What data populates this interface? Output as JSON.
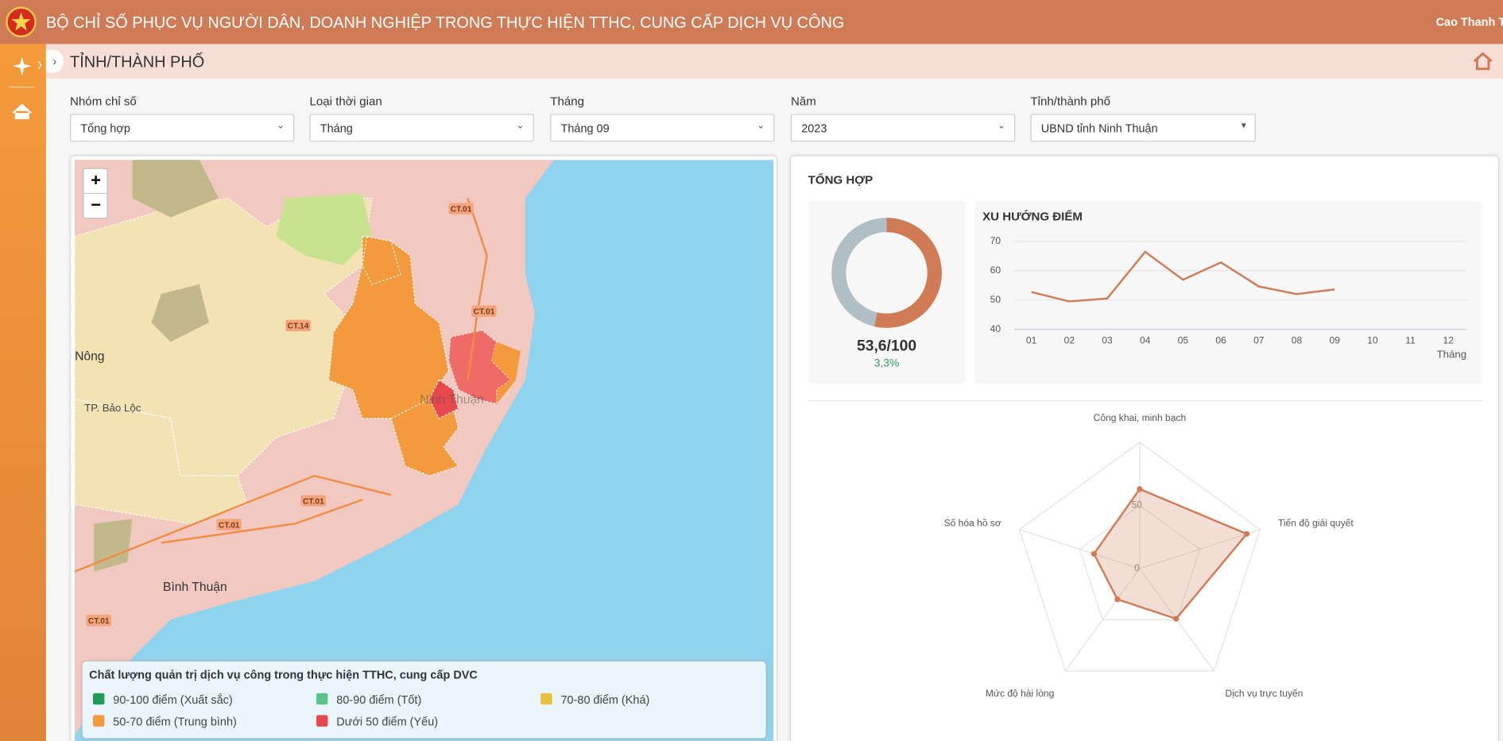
{
  "header": {
    "title": "BỘ CHỈ SỐ PHỤC VỤ NGƯỜI DÂN, DOANH NGHIỆP TRONG THỰC HIỆN TTHC, CUNG CẤP DỊCH VỤ CÔNG",
    "user": "Cao Thanh Tu"
  },
  "page_title": "TỈNH/THÀNH PHỐ",
  "filters": [
    {
      "label": "Nhóm chỉ số",
      "value": "Tổng hợp"
    },
    {
      "label": "Loại thời gian",
      "value": "Tháng"
    },
    {
      "label": "Tháng",
      "value": "Tháng 09"
    },
    {
      "label": "Năm",
      "value": "2023"
    },
    {
      "label": "Tỉnh/thành phố",
      "value": "UBND tỉnh Ninh Thuận"
    }
  ],
  "map": {
    "zoom_in": "+",
    "zoom_out": "−",
    "places": [
      "Nông",
      "TP. Bảo Lộc",
      "Bình Thuận",
      "Ninh Thuận"
    ],
    "roads": [
      "CT.01",
      "CT.01",
      "CT.14",
      "CT.01",
      "CT.01",
      "CT.01"
    ],
    "legend": {
      "title": "Chất lượng quản trị dịch vụ công trong thực hiện TTHC, cung cấp DVC",
      "items": [
        {
          "label": "90-100 điểm (Xuất sắc)",
          "color": "#1f9d57"
        },
        {
          "label": "80-90 điểm (Tốt)",
          "color": "#5cc48a"
        },
        {
          "label": "70-80 điểm (Khá)",
          "color": "#eac13f"
        },
        {
          "label": "50-70 điểm (Trung bình)",
          "color": "#f39a3c"
        },
        {
          "label": "Dưới 50 điểm (Yếu)",
          "color": "#e8474e"
        }
      ]
    }
  },
  "summary": {
    "title": "TỔNG HỢP",
    "donut": {
      "value": 53.6,
      "max": 100,
      "label": "53,6/100",
      "change_label": "3,3%",
      "color": "#d07a56",
      "rest_color": "#b0bec5"
    }
  },
  "chart_data": [
    {
      "type": "line",
      "title": "XU HƯỚNG ĐIỂM",
      "x_label": "Tháng",
      "categories": [
        "01",
        "02",
        "03",
        "04",
        "05",
        "06",
        "07",
        "08",
        "09",
        "10",
        "11",
        "12"
      ],
      "values": [
        52.7,
        49.5,
        50.5,
        66.4,
        56.9,
        62.8,
        54.6,
        52,
        53.6,
        null,
        null,
        null
      ],
      "color": "#d07a56",
      "ylim": [
        40,
        70
      ],
      "yticks": [
        40,
        50,
        60,
        70
      ],
      "grid": true
    },
    {
      "type": "radar",
      "categories": [
        "Công khai, minh bạch",
        "Tiến độ giải quyết",
        "Dịch vụ trực tuyến",
        "Mức độ hài lòng",
        "Số hóa hồ sơ"
      ],
      "values": [
        63,
        89,
        49,
        30,
        38
      ],
      "color": "#d07a56",
      "ylim": [
        0,
        100
      ],
      "yticks": [
        0,
        50
      ]
    }
  ]
}
